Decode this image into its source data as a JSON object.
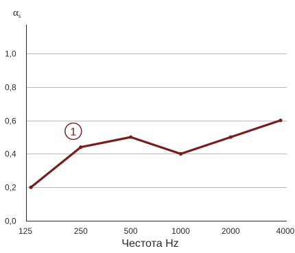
{
  "chart_data": {
    "type": "line",
    "title": "",
    "xlabel": "Честота Hz",
    "ylabel": "αs",
    "ylabel_main": "α",
    "ylabel_sub": "s",
    "x": [
      "125",
      "250",
      "500",
      "1000",
      "2000",
      "4000"
    ],
    "ylim": [
      0,
      1.1
    ],
    "y_ticks": [
      {
        "value": 0,
        "label": "0,0"
      },
      {
        "value": 0.2,
        "label": "0,2"
      },
      {
        "value": 0.4,
        "label": "0,4"
      },
      {
        "value": 0.6,
        "label": "0,6"
      },
      {
        "value": 0.8,
        "label": "0,8"
      },
      {
        "value": 1.0,
        "label": "1,0"
      }
    ],
    "grid": true,
    "series": [
      {
        "values": [
          0.2,
          0.44,
          0.5,
          0.4,
          0.5,
          0.6
        ],
        "color": "#7a1c1c"
      }
    ],
    "annotations": [
      {
        "text": "1",
        "x_index": 1.0,
        "y": 0.535
      }
    ],
    "colors": {
      "series": "#7a1c1c",
      "grid": "#b9b9b9",
      "axis": "#2a2a2a"
    }
  }
}
